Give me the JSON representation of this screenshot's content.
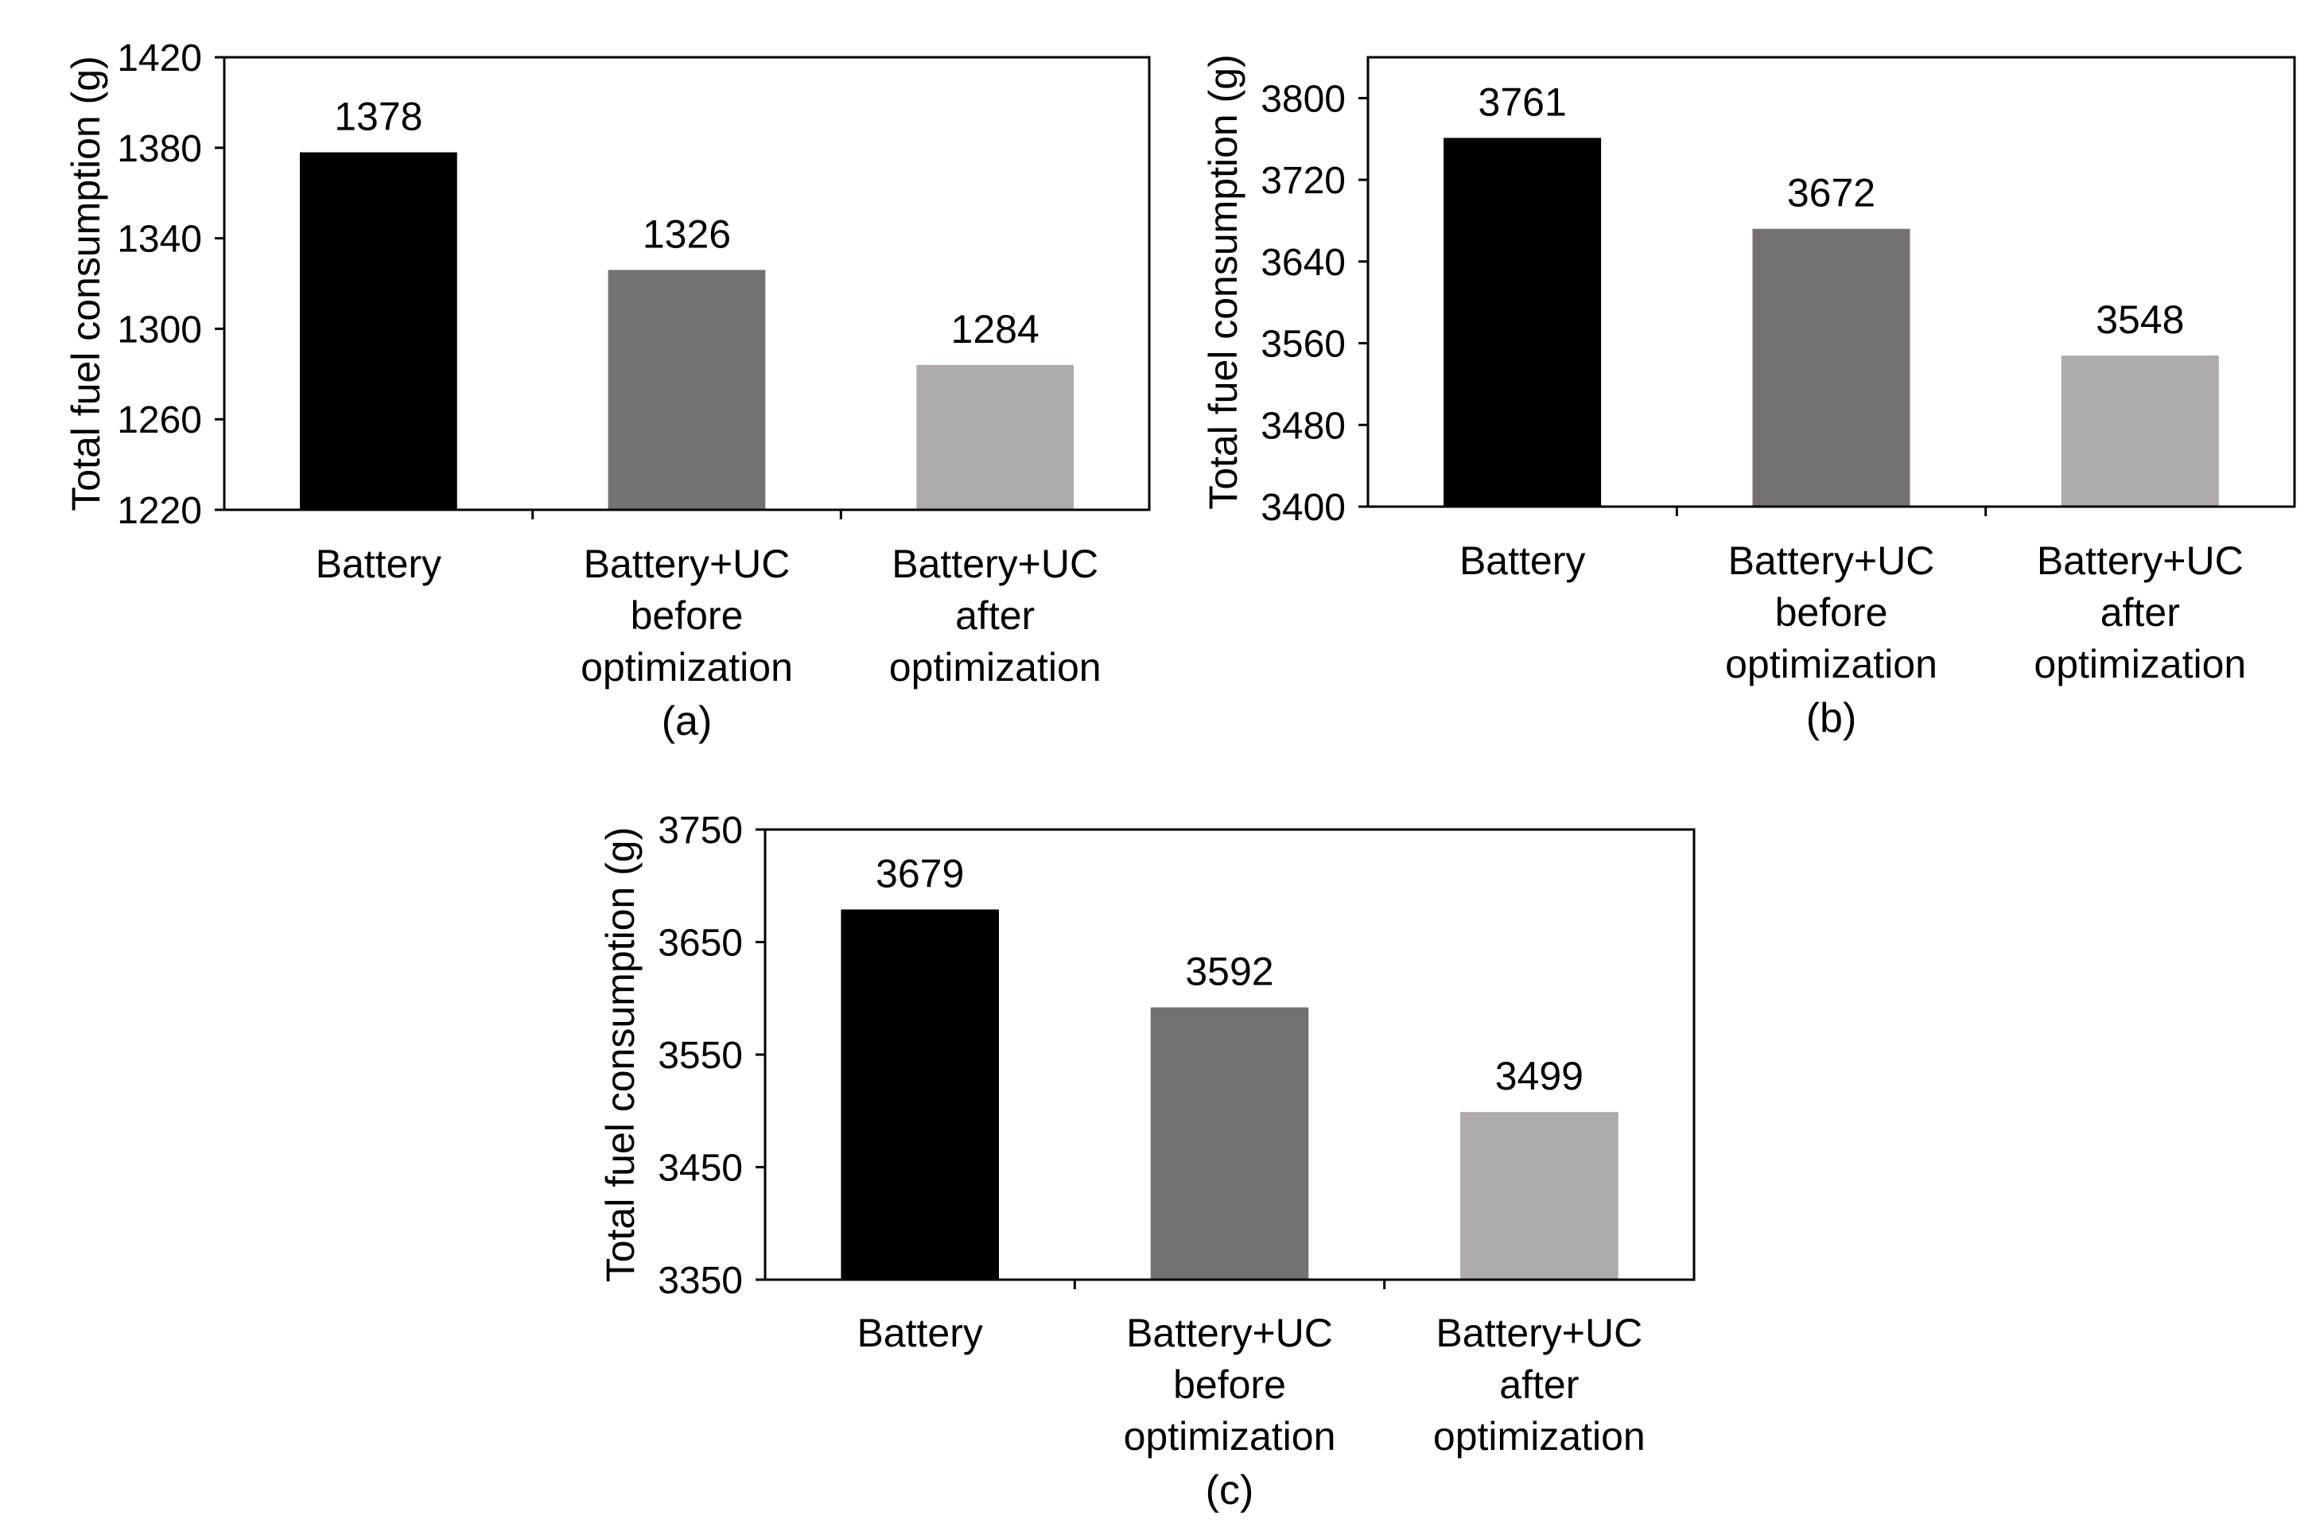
{
  "chart_data": [
    {
      "type": "bar",
      "panel_label": "(a)",
      "ylabel": "Total fuel consumption (g)",
      "xlabel": "",
      "ylim": [
        1220,
        1420
      ],
      "yticks": [
        1220,
        1260,
        1300,
        1340,
        1380,
        1420
      ],
      "categories": [
        [
          "Battery"
        ],
        [
          "Battery+UC",
          "before",
          "optimization"
        ],
        [
          "Battery+UC",
          "after",
          "optimization"
        ]
      ],
      "values": [
        1378,
        1326,
        1284
      ],
      "value_labels": [
        "1378",
        "1326",
        "1284"
      ],
      "bar_colors": [
        "#000000",
        "#767171",
        "#afabab"
      ],
      "grid": false
    },
    {
      "type": "bar",
      "panel_label": "(b)",
      "ylabel": "Total fuel consumption (g)",
      "xlabel": "",
      "ylim": [
        3400,
        3840
      ],
      "yticks": [
        3400,
        3480,
        3560,
        3640,
        3720,
        3800
      ],
      "categories": [
        [
          "Battery"
        ],
        [
          "Battery+UC",
          "before",
          "optimization"
        ],
        [
          "Battery+UC",
          "after",
          "optimization"
        ]
      ],
      "values": [
        3761,
        3672,
        3548
      ],
      "value_labels": [
        "3761",
        "3672",
        "3548"
      ],
      "bar_colors": [
        "#000000",
        "#767171",
        "#afabab"
      ],
      "grid": false
    },
    {
      "type": "bar",
      "panel_label": "(c)",
      "ylabel": "Total fuel consumption (g)",
      "xlabel": "",
      "ylim": [
        3350,
        3750
      ],
      "yticks": [
        3350,
        3450,
        3550,
        3650,
        3750
      ],
      "categories": [
        [
          "Battery"
        ],
        [
          "Battery+UC",
          "before",
          "optimization"
        ],
        [
          "Battery+UC",
          "after",
          "optimization"
        ]
      ],
      "values": [
        3679,
        3592,
        3499
      ],
      "value_labels": [
        "3679",
        "3592",
        "3499"
      ],
      "bar_colors": [
        "#000000",
        "#767171",
        "#afabab"
      ],
      "grid": false
    }
  ]
}
